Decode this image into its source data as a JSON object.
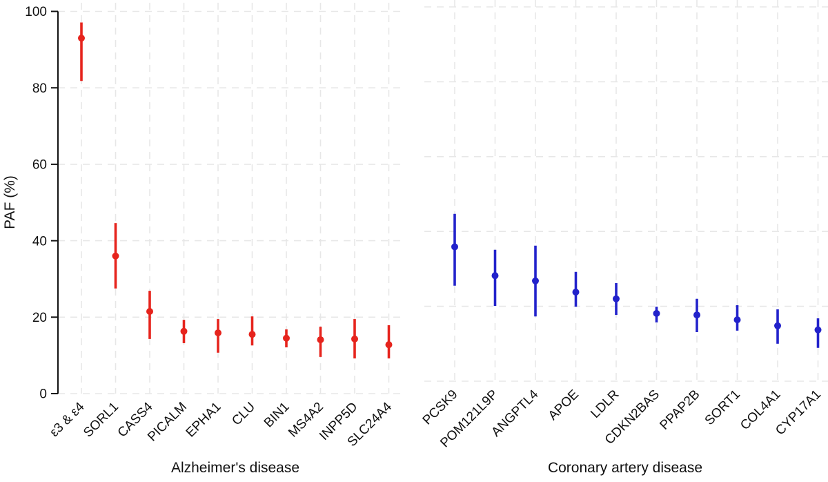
{
  "chart_data": {
    "type": "scatter",
    "subtype": "pointrange-forest",
    "title": "",
    "ylabel": "PAF (%)",
    "ylim": [
      0,
      100
    ],
    "y_ticks": [
      0,
      20,
      40,
      60,
      80,
      100
    ],
    "grid": "dashed light-gray horizontal at each y tick and vertical at each category",
    "legend": "none",
    "colors": {
      "alzheimers": "#e6241d",
      "coronary": "#2222cb",
      "gridline": "#e7e7e7",
      "axis": "#111111",
      "background": "#ffffff"
    },
    "groups": [
      {
        "name": "Alzheimer's disease",
        "color": "#e6241d",
        "points": [
          {
            "label": "ε3 & ε4",
            "paf": 93.0,
            "ci_low": 81.8,
            "ci_high": 97.1
          },
          {
            "label": "SORL1",
            "paf": 36.0,
            "ci_low": 27.5,
            "ci_high": 44.6
          },
          {
            "label": "CASS4",
            "paf": 21.5,
            "ci_low": 14.3,
            "ci_high": 26.9
          },
          {
            "label": "PICALM",
            "paf": 16.3,
            "ci_low": 13.2,
            "ci_high": 19.3
          },
          {
            "label": "EPHA1",
            "paf": 15.9,
            "ci_low": 10.7,
            "ci_high": 19.5
          },
          {
            "label": "CLU",
            "paf": 15.5,
            "ci_low": 12.6,
            "ci_high": 20.2
          },
          {
            "label": "BIN1",
            "paf": 14.5,
            "ci_low": 12.1,
            "ci_high": 16.8
          },
          {
            "label": "MS4A2",
            "paf": 14.1,
            "ci_low": 9.6,
            "ci_high": 17.5
          },
          {
            "label": "INPP5D",
            "paf": 14.3,
            "ci_low": 9.2,
            "ci_high": 19.5
          },
          {
            "label": "SLC24A4",
            "paf": 12.8,
            "ci_low": 9.2,
            "ci_high": 17.9
          }
        ]
      },
      {
        "name": "Coronary artery disease",
        "color": "#2222cb",
        "points": [
          {
            "label": "PCSK9",
            "paf": 35.9,
            "ci_low": 25.5,
            "ci_high": 44.7
          },
          {
            "label": "POM121L9P",
            "paf": 28.2,
            "ci_low": 20.1,
            "ci_high": 35.1
          },
          {
            "label": "ANGPTL4",
            "paf": 26.8,
            "ci_low": 17.3,
            "ci_high": 36.2
          },
          {
            "label": "APOE",
            "paf": 23.8,
            "ci_low": 19.9,
            "ci_high": 29.2
          },
          {
            "label": "LDLR",
            "paf": 22.0,
            "ci_low": 17.7,
            "ci_high": 26.2
          },
          {
            "label": "CDKN2BAS",
            "paf": 18.1,
            "ci_low": 15.7,
            "ci_high": 19.9
          },
          {
            "label": "PPAP2B",
            "paf": 17.7,
            "ci_low": 13.1,
            "ci_high": 22.0
          },
          {
            "label": "SORT1",
            "paf": 16.4,
            "ci_low": 13.5,
            "ci_high": 20.3
          },
          {
            "label": "COL4A1",
            "paf": 14.8,
            "ci_low": 10.0,
            "ci_high": 19.2
          },
          {
            "label": "CYP17A1",
            "paf": 13.7,
            "ci_low": 8.9,
            "ci_high": 16.8
          }
        ]
      }
    ]
  }
}
